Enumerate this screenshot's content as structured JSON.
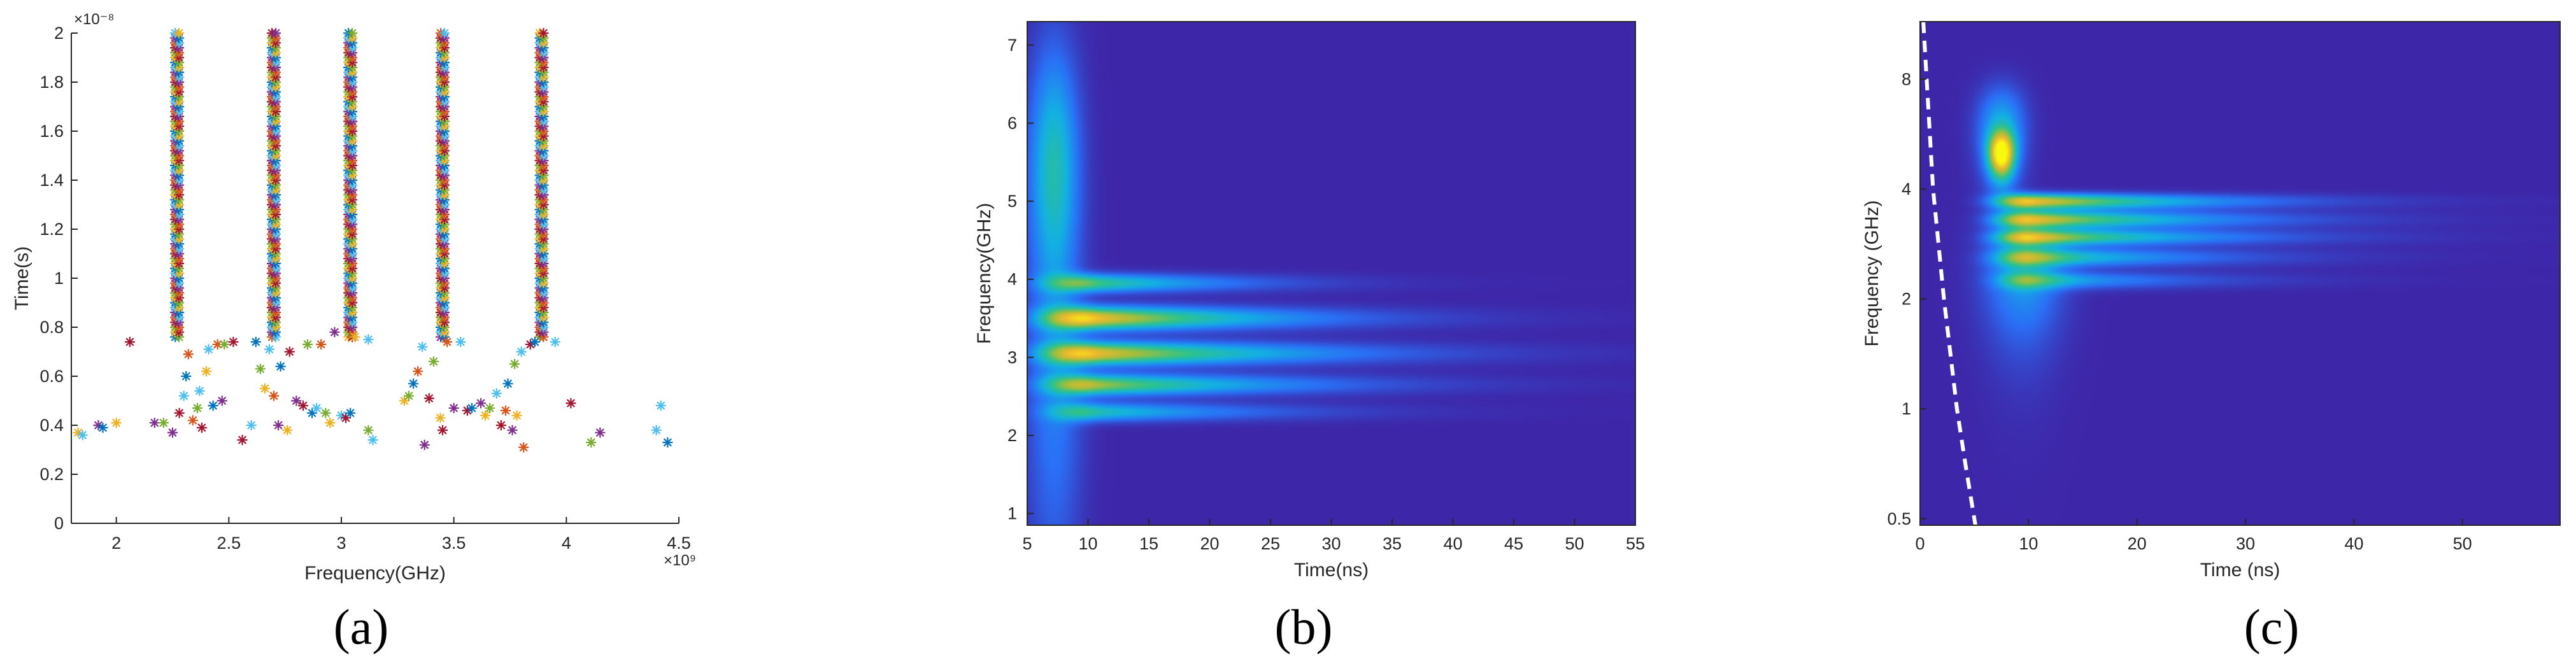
{
  "chart_data": [
    {
      "panel": "a",
      "type": "scatter",
      "caption": "(a)",
      "xlabel": "Frequency(GHz)",
      "ylabel": "Time(s)",
      "x_exponent": "×10⁹",
      "y_exponent": "×10⁻⁸",
      "xlim": [
        1.8,
        4.5
      ],
      "ylim": [
        0,
        2
      ],
      "xticks": [
        2,
        2.5,
        3,
        3.5,
        4,
        4.5
      ],
      "yticks": [
        0,
        0.2,
        0.4,
        0.6,
        0.8,
        1,
        1.2,
        1.4,
        1.6,
        1.8,
        2
      ],
      "marker": "asterisk",
      "series_colors": [
        "#0072bd",
        "#d95319",
        "#edb120",
        "#7e2f8e",
        "#77ac30",
        "#4dbeee",
        "#a2142f"
      ],
      "columns": [
        {
          "x": 2.27,
          "y_from": 0.76,
          "y_to": 2.0
        },
        {
          "x": 2.7,
          "y_from": 0.76,
          "y_to": 2.0
        },
        {
          "x": 3.04,
          "y_from": 0.76,
          "y_to": 2.0
        },
        {
          "x": 3.45,
          "y_from": 0.76,
          "y_to": 2.0
        },
        {
          "x": 3.89,
          "y_from": 0.76,
          "y_to": 2.0
        }
      ],
      "points": [
        {
          "x": 1.83,
          "y": 0.37,
          "c": 2
        },
        {
          "x": 1.85,
          "y": 0.36,
          "c": 5
        },
        {
          "x": 1.92,
          "y": 0.4,
          "c": 3
        },
        {
          "x": 1.94,
          "y": 0.39,
          "c": 0
        },
        {
          "x": 2.0,
          "y": 0.41,
          "c": 2
        },
        {
          "x": 2.06,
          "y": 0.74,
          "c": 6
        },
        {
          "x": 2.17,
          "y": 0.41,
          "c": 3
        },
        {
          "x": 2.21,
          "y": 0.41,
          "c": 4
        },
        {
          "x": 2.25,
          "y": 0.37,
          "c": 3
        },
        {
          "x": 2.28,
          "y": 0.45,
          "c": 6
        },
        {
          "x": 2.3,
          "y": 0.52,
          "c": 5
        },
        {
          "x": 2.31,
          "y": 0.6,
          "c": 0
        },
        {
          "x": 2.32,
          "y": 0.69,
          "c": 1
        },
        {
          "x": 2.34,
          "y": 0.42,
          "c": 1
        },
        {
          "x": 2.36,
          "y": 0.47,
          "c": 4
        },
        {
          "x": 2.37,
          "y": 0.54,
          "c": 5
        },
        {
          "x": 2.38,
          "y": 0.39,
          "c": 6
        },
        {
          "x": 2.4,
          "y": 0.62,
          "c": 2
        },
        {
          "x": 2.41,
          "y": 0.71,
          "c": 5
        },
        {
          "x": 2.43,
          "y": 0.48,
          "c": 0
        },
        {
          "x": 2.45,
          "y": 0.73,
          "c": 1
        },
        {
          "x": 2.47,
          "y": 0.5,
          "c": 3
        },
        {
          "x": 2.48,
          "y": 0.73,
          "c": 4
        },
        {
          "x": 2.52,
          "y": 0.74,
          "c": 6
        },
        {
          "x": 2.56,
          "y": 0.34,
          "c": 6
        },
        {
          "x": 2.6,
          "y": 0.4,
          "c": 5
        },
        {
          "x": 2.62,
          "y": 0.74,
          "c": 0
        },
        {
          "x": 2.64,
          "y": 0.63,
          "c": 4
        },
        {
          "x": 2.66,
          "y": 0.55,
          "c": 2
        },
        {
          "x": 2.68,
          "y": 0.71,
          "c": 5
        },
        {
          "x": 2.7,
          "y": 0.52,
          "c": 1
        },
        {
          "x": 2.72,
          "y": 0.4,
          "c": 3
        },
        {
          "x": 2.73,
          "y": 0.64,
          "c": 0
        },
        {
          "x": 2.76,
          "y": 0.38,
          "c": 2
        },
        {
          "x": 2.77,
          "y": 0.7,
          "c": 6
        },
        {
          "x": 2.8,
          "y": 0.5,
          "c": 3
        },
        {
          "x": 2.83,
          "y": 0.48,
          "c": 6
        },
        {
          "x": 2.85,
          "y": 0.73,
          "c": 4
        },
        {
          "x": 2.87,
          "y": 0.45,
          "c": 0
        },
        {
          "x": 2.89,
          "y": 0.47,
          "c": 5
        },
        {
          "x": 2.91,
          "y": 0.73,
          "c": 1
        },
        {
          "x": 2.93,
          "y": 0.45,
          "c": 4
        },
        {
          "x": 2.95,
          "y": 0.41,
          "c": 2
        },
        {
          "x": 2.97,
          "y": 0.78,
          "c": 3
        },
        {
          "x": 3.0,
          "y": 0.44,
          "c": 5
        },
        {
          "x": 3.02,
          "y": 0.43,
          "c": 6
        },
        {
          "x": 3.04,
          "y": 0.45,
          "c": 0
        },
        {
          "x": 3.06,
          "y": 0.76,
          "c": 2
        },
        {
          "x": 3.12,
          "y": 0.75,
          "c": 5
        },
        {
          "x": 3.12,
          "y": 0.38,
          "c": 4
        },
        {
          "x": 3.14,
          "y": 0.34,
          "c": 5
        },
        {
          "x": 3.28,
          "y": 0.5,
          "c": 2
        },
        {
          "x": 3.3,
          "y": 0.52,
          "c": 4
        },
        {
          "x": 3.32,
          "y": 0.57,
          "c": 0
        },
        {
          "x": 3.34,
          "y": 0.62,
          "c": 1
        },
        {
          "x": 3.36,
          "y": 0.72,
          "c": 5
        },
        {
          "x": 3.37,
          "y": 0.32,
          "c": 3
        },
        {
          "x": 3.39,
          "y": 0.51,
          "c": 6
        },
        {
          "x": 3.41,
          "y": 0.66,
          "c": 4
        },
        {
          "x": 3.44,
          "y": 0.43,
          "c": 2
        },
        {
          "x": 3.45,
          "y": 0.38,
          "c": 6
        },
        {
          "x": 3.47,
          "y": 0.74,
          "c": 1
        },
        {
          "x": 3.5,
          "y": 0.47,
          "c": 3
        },
        {
          "x": 3.53,
          "y": 0.74,
          "c": 5
        },
        {
          "x": 3.56,
          "y": 0.46,
          "c": 6
        },
        {
          "x": 3.58,
          "y": 0.47,
          "c": 0
        },
        {
          "x": 3.62,
          "y": 0.49,
          "c": 3
        },
        {
          "x": 3.64,
          "y": 0.44,
          "c": 2
        },
        {
          "x": 3.66,
          "y": 0.47,
          "c": 4
        },
        {
          "x": 3.69,
          "y": 0.53,
          "c": 5
        },
        {
          "x": 3.71,
          "y": 0.4,
          "c": 6
        },
        {
          "x": 3.73,
          "y": 0.46,
          "c": 1
        },
        {
          "x": 3.74,
          "y": 0.57,
          "c": 0
        },
        {
          "x": 3.76,
          "y": 0.38,
          "c": 3
        },
        {
          "x": 3.77,
          "y": 0.65,
          "c": 4
        },
        {
          "x": 3.78,
          "y": 0.44,
          "c": 2
        },
        {
          "x": 3.8,
          "y": 0.7,
          "c": 5
        },
        {
          "x": 3.81,
          "y": 0.31,
          "c": 1
        },
        {
          "x": 3.84,
          "y": 0.73,
          "c": 6
        },
        {
          "x": 3.86,
          "y": 0.74,
          "c": 0
        },
        {
          "x": 3.95,
          "y": 0.74,
          "c": 5
        },
        {
          "x": 4.02,
          "y": 0.49,
          "c": 6
        },
        {
          "x": 4.11,
          "y": 0.33,
          "c": 4
        },
        {
          "x": 4.15,
          "y": 0.37,
          "c": 3
        },
        {
          "x": 4.4,
          "y": 0.38,
          "c": 5
        },
        {
          "x": 4.42,
          "y": 0.48,
          "c": 5
        },
        {
          "x": 4.45,
          "y": 0.33,
          "c": 0
        }
      ],
      "grid": false
    },
    {
      "panel": "b",
      "type": "heatmap",
      "caption": "(b)",
      "xlabel": "Time(ns)",
      "ylabel": "Frequency(GHz)",
      "xlim": [
        5,
        55
      ],
      "ylim": [
        0.85,
        7.3
      ],
      "xticks": [
        5,
        10,
        15,
        20,
        25,
        30,
        35,
        40,
        45,
        50,
        55
      ],
      "yticks": [
        1,
        2,
        3,
        4,
        5,
        6,
        7
      ],
      "background_color": "#3e26a8",
      "colormap": [
        "#3e26a8",
        "#2a6ff6",
        "#13b0e4",
        "#2ec38a",
        "#a5be3a",
        "#f1b92e",
        "#f8fa0d"
      ],
      "blobs": [
        {
          "t": 7.2,
          "f": 5.5,
          "st": 1.4,
          "sf": 1.0,
          "a": 0.38,
          "decay": 0
        },
        {
          "t": 7.2,
          "f": 2.6,
          "st": 1.6,
          "sf": 1.8,
          "a": 0.2,
          "decay": 0
        },
        {
          "t": 10,
          "f": 3.95,
          "st": 2.2,
          "sf": 0.08,
          "a": 0.55,
          "decay": 22
        },
        {
          "t": 10,
          "f": 3.5,
          "st": 2.4,
          "sf": 0.1,
          "a": 0.88,
          "decay": 28
        },
        {
          "t": 10,
          "f": 3.05,
          "st": 2.4,
          "sf": 0.1,
          "a": 0.85,
          "decay": 32
        },
        {
          "t": 10,
          "f": 2.65,
          "st": 2.2,
          "sf": 0.09,
          "a": 0.7,
          "decay": 30
        },
        {
          "t": 10,
          "f": 2.3,
          "st": 2.0,
          "sf": 0.08,
          "a": 0.45,
          "decay": 26
        }
      ]
    },
    {
      "panel": "c",
      "type": "heatmap",
      "caption": "(c)",
      "xlabel": "Time (ns)",
      "ylabel": "Frequency (GHz)",
      "xlim": [
        0,
        59
      ],
      "yscale": "log",
      "ylim": [
        0.48,
        11.5
      ],
      "xticks": [
        0,
        10,
        20,
        30,
        40,
        50
      ],
      "yticks": [
        0.5,
        1,
        2,
        4,
        8
      ],
      "background_color": "#3e26a8",
      "colormap": [
        "#3e26a8",
        "#2a6ff6",
        "#13b0e4",
        "#2ec38a",
        "#a5be3a",
        "#f1b92e",
        "#f8fa0d"
      ],
      "cone_of_influence": {
        "style": "white dashed",
        "points": [
          [
            0.3,
            11.5
          ],
          [
            1.2,
            4.0
          ],
          [
            2.2,
            2.0
          ],
          [
            3.4,
            1.0
          ],
          [
            4.2,
            0.7
          ],
          [
            5.1,
            0.48
          ]
        ]
      },
      "blobs": [
        {
          "t": 7.5,
          "f": 5.0,
          "st": 0.8,
          "sf": 0.5,
          "a": 0.9,
          "decay": 0
        },
        {
          "t": 7.5,
          "f": 5.8,
          "st": 1.5,
          "sf": 1.2,
          "a": 0.35,
          "decay": 0
        },
        {
          "t": 9.5,
          "f": 2.3,
          "st": 2.5,
          "sf": 0.6,
          "a": 0.28,
          "decay": 0
        },
        {
          "t": 10,
          "f": 3.7,
          "st": 2.0,
          "sf": 0.12,
          "a": 0.85,
          "decay": 30
        },
        {
          "t": 10,
          "f": 3.3,
          "st": 2.0,
          "sf": 0.12,
          "a": 0.8,
          "decay": 30
        },
        {
          "t": 10,
          "f": 2.95,
          "st": 2.0,
          "sf": 0.1,
          "a": 0.75,
          "decay": 30
        },
        {
          "t": 10,
          "f": 2.6,
          "st": 2.0,
          "sf": 0.1,
          "a": 0.55,
          "decay": 28
        },
        {
          "t": 10,
          "f": 2.25,
          "st": 1.8,
          "sf": 0.08,
          "a": 0.4,
          "decay": 26
        }
      ]
    }
  ]
}
